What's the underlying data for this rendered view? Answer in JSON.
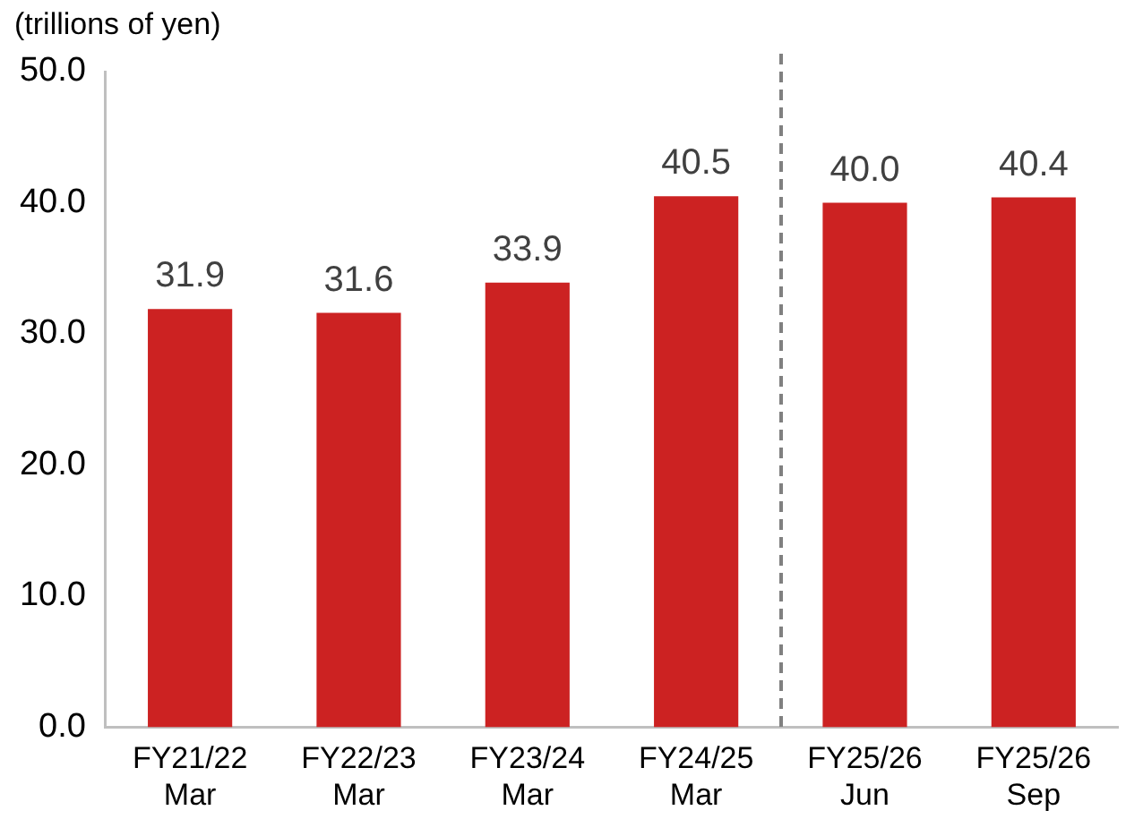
{
  "chart_data": {
    "type": "bar",
    "ylabel": "(trillions of yen)",
    "categories": [
      "FY21/22 Mar",
      "FY22/23 Mar",
      "FY23/24 Mar",
      "FY24/25 Mar",
      "FY25/26 Jun",
      "FY25/26 Sep"
    ],
    "values": [
      31.9,
      31.6,
      33.9,
      40.5,
      40.0,
      40.4
    ],
    "color": "#cc2222",
    "value_labels": [
      "31.9",
      "31.6",
      "33.9",
      "40.5",
      "40.0",
      "40.4"
    ],
    "ylim": [
      0,
      50
    ],
    "yticks": [
      {
        "value": 0,
        "label": "0.0"
      },
      {
        "value": 10,
        "label": "10.0"
      },
      {
        "value": 20,
        "label": "20.0"
      },
      {
        "value": 30,
        "label": "30.0"
      },
      {
        "value": 40,
        "label": "40.0"
      },
      {
        "value": 50,
        "label": "50.0"
      }
    ],
    "grid": false,
    "legend": false
  }
}
